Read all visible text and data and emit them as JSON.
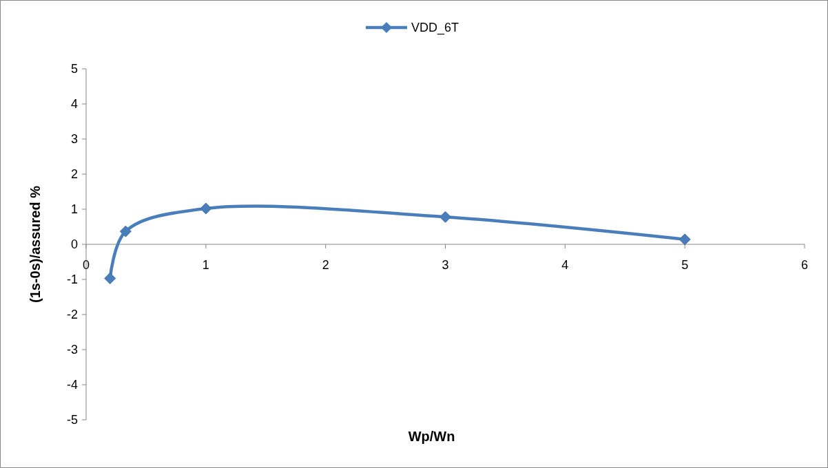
{
  "chart_data": {
    "type": "line",
    "xlabel": "Wp/Wn",
    "ylabel": "(1s-0s)/assured %",
    "x": [
      0.2,
      0.33,
      1,
      3,
      5
    ],
    "series": [
      {
        "name": "VDD_6T",
        "color": "#4a7ebb",
        "values": [
          -0.97,
          0.37,
          1.02,
          0.78,
          0.14
        ]
      }
    ],
    "xlim": [
      0,
      6
    ],
    "xticks": [
      0,
      1,
      2,
      3,
      4,
      5,
      6
    ],
    "ylim": [
      -5,
      5
    ],
    "yticks": [
      -5,
      -4,
      -3,
      -2,
      -1,
      0,
      1,
      2,
      3,
      4,
      5
    ],
    "grid": false,
    "legend": "top",
    "marker": "diamond",
    "line_style": "solid"
  }
}
